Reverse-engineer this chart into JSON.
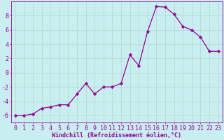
{
  "x_data": [
    0,
    1,
    2,
    3,
    4,
    5,
    6,
    7,
    8,
    9,
    10,
    11,
    12,
    13,
    14,
    15,
    16,
    17,
    18,
    19,
    20,
    21,
    22,
    23
  ],
  "y_data": [
    -6,
    -6,
    -5.8,
    -5.0,
    -4.8,
    -4.5,
    -4.5,
    -3.0,
    -1.5,
    -3.0,
    -2.0,
    -2.0,
    -1.5,
    2.5,
    1.0,
    5.8,
    9.3,
    9.2,
    8.2,
    6.5,
    6.0,
    5.0,
    3.0,
    3.0
  ],
  "line_color": "#990099",
  "marker": "D",
  "marker_size": 2.2,
  "background_color": "#c8eef0",
  "grid_color": "#b0d8cc",
  "xlabel": "Windchill (Refroidissement éolien,°C)",
  "xlim": [
    -0.5,
    23.5
  ],
  "ylim": [
    -7,
    10
  ],
  "yticks": [
    -6,
    -4,
    -2,
    0,
    2,
    4,
    6,
    8
  ],
  "xtick_labels": [
    "0",
    "1",
    "2",
    "3",
    "4",
    "5",
    "6",
    "7",
    "8",
    "9",
    "10",
    "11",
    "12",
    "13",
    "14",
    "15",
    "16",
    "17",
    "18",
    "19",
    "20",
    "21",
    "22",
    "23"
  ],
  "xlabel_fontsize": 6.0,
  "tick_fontsize": 6.0
}
